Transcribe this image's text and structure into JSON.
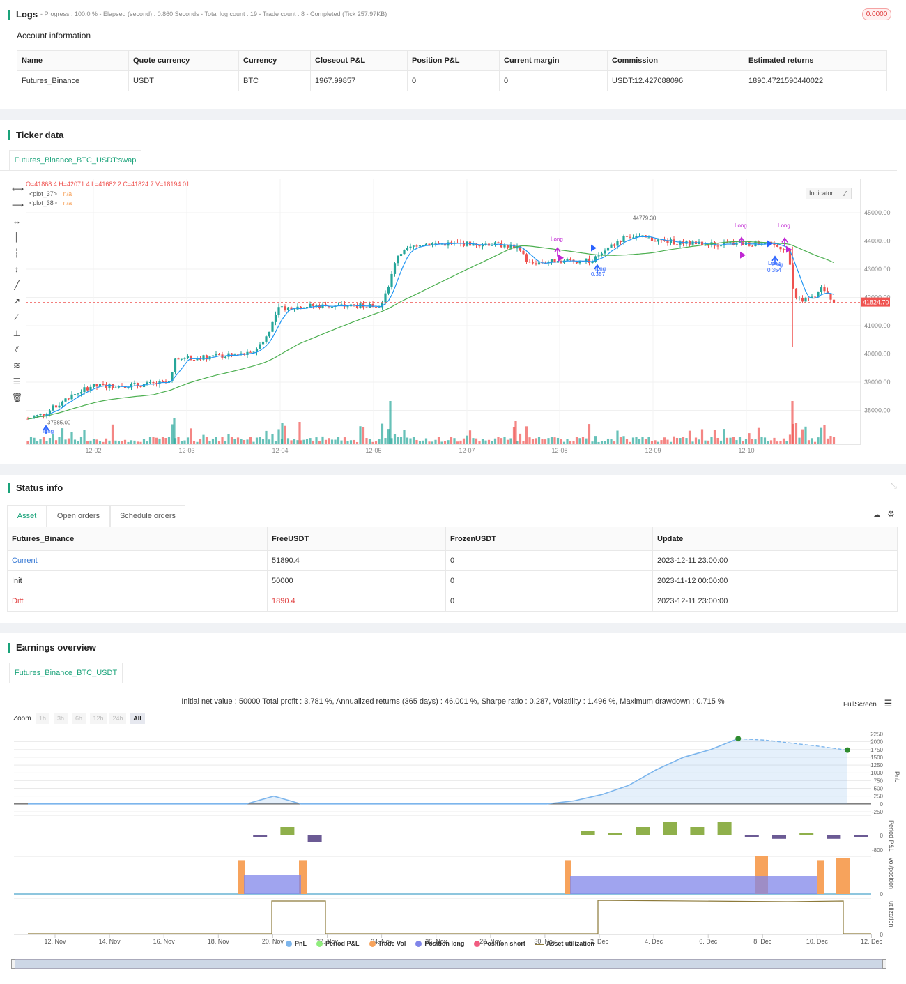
{
  "logs": {
    "title": "Logs",
    "summary": "- Progress : 100.0 % - Elapsed (second) : 0.860  Seconds - Total log count : 19 - Trade count : 8 - Completed (Tick 257.97KB)",
    "badge": "0.0000"
  },
  "account": {
    "title": "Account information",
    "headers": [
      "Name",
      "Quote currency",
      "Currency",
      "Closeout P&L",
      "Position P&L",
      "Current margin",
      "Commission",
      "Estimated returns"
    ],
    "row": [
      "Futures_Binance",
      "USDT",
      "BTC",
      "1967.99857",
      "0",
      "0",
      "USDT:12.427088096",
      "1890.4721590440022"
    ]
  },
  "ticker": {
    "title": "Ticker data",
    "tab": "Futures_Binance_BTC_USDT:swap",
    "ohlc": "O=41868.4 H=42071.4 L=41682.2 C=41824.7 V=18194.01",
    "plot37": "<plot_37>",
    "plot38": "<plot_38>",
    "na": "n/a",
    "indicator_btn": "Indicator",
    "last_price": "41824.70",
    "high_label": "44779.30",
    "low_label": "37585.00",
    "y_ticks": [
      "45000.00",
      "44000.00",
      "43000.00",
      "42000.00",
      "41000.00",
      "40000.00",
      "39000.00",
      "38000.00"
    ],
    "x_ticks": [
      "12-02",
      "12-03",
      "12-04",
      "12-05",
      "12-07",
      "12-08",
      "12-09",
      "12-10"
    ],
    "signals": [
      "Long",
      "Long",
      "Long",
      "Long",
      "long",
      "long",
      "long",
      "0.357",
      "0.354"
    ],
    "colors": {
      "up": "#26a69a",
      "down": "#ef5350",
      "ma_fast": "#2196f3",
      "ma_slow": "#4caf50",
      "signal_long": "#2962ff",
      "signal_close": "#c026d3"
    }
  },
  "status": {
    "title": "Status info",
    "tabs": [
      "Asset",
      "Open orders",
      "Schedule orders"
    ],
    "headers": [
      "Futures_Binance",
      "FreeUSDT",
      "FrozenUSDT",
      "Update"
    ],
    "rows": [
      [
        "Current",
        "51890.4",
        "0",
        "2023-12-11 23:00:00"
      ],
      [
        "Init",
        "50000",
        "0",
        "2023-11-12 00:00:00"
      ],
      [
        "Diff",
        "1890.4",
        "0",
        "2023-12-11 23:00:00"
      ]
    ]
  },
  "earnings": {
    "title": "Earnings overview",
    "tab": "Futures_Binance_BTC_USDT",
    "summary": "Initial net value : 50000 Total profit : 3.781 %, Annualized returns (365 days) : 46.001 %, Sharpe ratio : 0.287, Volatility : 1.496 %, Maximum drawdown : 0.715 %",
    "fullscreen": "FullScreen",
    "zoom_label": "Zoom",
    "zoom_options": [
      "1h",
      "3h",
      "6h",
      "12h",
      "24h",
      "All"
    ],
    "pnl_ticks": [
      "2250",
      "2000",
      "1750",
      "1500",
      "1250",
      "1000",
      "750",
      "500",
      "250",
      "0",
      "-250"
    ],
    "period_ticks": [
      "0",
      "-800"
    ],
    "axis_labels": [
      "PnL",
      "Period P&L",
      "vol/position",
      "utilization"
    ],
    "x_ticks": [
      "12. Nov",
      "14. Nov",
      "16. Nov",
      "18. Nov",
      "20. Nov",
      "22. Nov",
      "24. Nov",
      "26. Nov",
      "28. Nov",
      "30. Nov",
      "2. Dec",
      "4. Dec",
      "6. Dec",
      "8. Dec",
      "10. Dec",
      "12. Dec"
    ],
    "legend": [
      {
        "label": "PnL",
        "color": "#7cb5ec"
      },
      {
        "label": "Period P&L",
        "color": "#90ed7d"
      },
      {
        "label": "Trade Vol",
        "color": "#f7a35c"
      },
      {
        "label": "Position long",
        "color": "#8085e9"
      },
      {
        "label": "Position short",
        "color": "#f15c80"
      },
      {
        "label": "Asset utilization",
        "color": "#8d7a3a"
      }
    ],
    "chart_data": {
      "type": "area",
      "pnl_x_days": [
        0,
        2,
        4,
        6,
        8,
        9,
        10,
        11,
        12,
        14,
        16,
        18,
        19,
        20,
        21,
        22,
        23,
        24,
        25,
        26,
        27,
        28,
        29,
        30
      ],
      "pnl_values": [
        0,
        0,
        0,
        0,
        0,
        250,
        0,
        0,
        0,
        0,
        0,
        0,
        0,
        100,
        300,
        600,
        1100,
        1500,
        1750,
        2100,
        2050,
        1950,
        1850,
        1730
      ],
      "period_pnl": [
        {
          "day": 8.5,
          "v": -40
        },
        {
          "day": 9.5,
          "v": 300
        },
        {
          "day": 10.5,
          "v": -250
        },
        {
          "day": 20.5,
          "v": 150
        },
        {
          "day": 21.5,
          "v": 100
        },
        {
          "day": 22.5,
          "v": 300
        },
        {
          "day": 23.5,
          "v": 500
        },
        {
          "day": 24.5,
          "v": 300
        },
        {
          "day": 25.5,
          "v": 500
        },
        {
          "day": 26.5,
          "v": -40
        },
        {
          "day": 27.5,
          "v": -120
        },
        {
          "day": 28.5,
          "v": 80
        },
        {
          "day": 29.5,
          "v": -120
        },
        {
          "day": 30.5,
          "v": -40
        }
      ]
    }
  }
}
